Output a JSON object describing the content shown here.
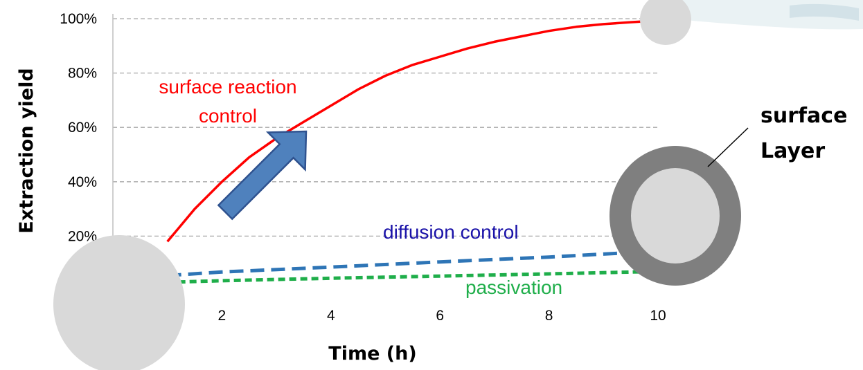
{
  "chart_data": {
    "type": "line",
    "xlabel": "Time (h)",
    "ylabel": "Extraction yield",
    "xlim": [
      0,
      10
    ],
    "ylim": [
      0,
      100
    ],
    "x_ticks": [
      2,
      4,
      6,
      8,
      10
    ],
    "y_ticks": [
      20,
      40,
      60,
      80,
      100
    ],
    "y_tick_labels": [
      "20%",
      "40%",
      "60%",
      "80%",
      "100%"
    ],
    "grid": true,
    "series": [
      {
        "color": "#ff0000",
        "style": "solid",
        "x": [
          1,
          1.5,
          2,
          2.5,
          3,
          3.5,
          4,
          4.5,
          5,
          5.5,
          6,
          6.5,
          7,
          7.5,
          8,
          8.5,
          9,
          9.5,
          10
        ],
        "y": [
          18,
          30,
          40,
          49,
          56,
          62,
          68,
          74,
          79,
          83,
          86,
          89,
          91.5,
          93.5,
          95.5,
          97,
          98,
          98.7,
          99.3
        ]
      },
      {
        "color": "#2e75b6",
        "style": "dashed",
        "x": [
          1,
          2,
          4,
          6,
          8,
          10
        ],
        "y": [
          5.5,
          6.8,
          8.6,
          10.5,
          12.3,
          14.5
        ]
      },
      {
        "color": "#1fae4a",
        "style": "dashed",
        "x": [
          1,
          2,
          4,
          6,
          8,
          10
        ],
        "y": [
          3,
          3.6,
          4.5,
          5.3,
          6.1,
          7
        ]
      }
    ],
    "annotations": [
      {
        "text": "surface reaction",
        "color": "#ff0000"
      },
      {
        "text": "control",
        "color": "#ff0000"
      },
      {
        "text": "diffusion control",
        "color": "#1a12a8"
      },
      {
        "text": "passivation",
        "color": "#1fae4a"
      }
    ]
  },
  "diagram": {
    "side_label_line1": "surface",
    "side_label_line2": "Layer",
    "arrow_color": "#4f81bd",
    "particle_core_color": "#d9d9d9",
    "particle_shell_color": "#7f7f7f"
  }
}
